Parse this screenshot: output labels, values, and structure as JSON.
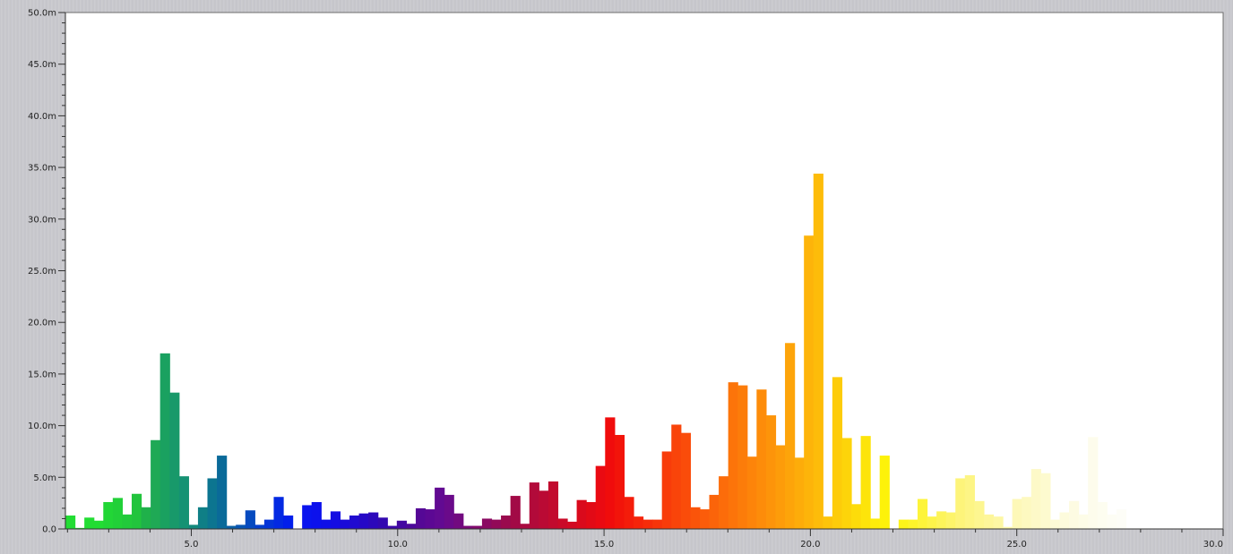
{
  "chart_data": {
    "type": "bar",
    "title": "",
    "xlabel": "",
    "ylabel": "",
    "xlim": [
      1.95,
      30.0
    ],
    "ylim": [
      0,
      50
    ],
    "grid": false,
    "bin_width": 0.2294,
    "x_ticks": [
      5.0,
      10.0,
      15.0,
      20.0,
      25.0,
      30.0
    ],
    "x_tick_labels": [
      "5.0",
      "10.0",
      "15.0",
      "20.0",
      "25.0",
      "30.0"
    ],
    "y_ticks": [
      0,
      5,
      10,
      15,
      20,
      25,
      30,
      35,
      40,
      45,
      50
    ],
    "y_tick_labels": [
      "0.0",
      "5.0m",
      "10.0m",
      "15.0m",
      "20.0m",
      "25.0m",
      "30.0m",
      "35.0m",
      "40.0m",
      "45.0m",
      "50.0m"
    ],
    "values": [
      1.3,
      0.1,
      1.1,
      0.8,
      2.6,
      3.0,
      1.4,
      3.4,
      2.1,
      8.6,
      17.0,
      13.2,
      5.1,
      0.4,
      2.1,
      4.9,
      7.1,
      0.3,
      0.4,
      1.8,
      0.4,
      0.9,
      3.1,
      1.3,
      0.0,
      2.3,
      2.6,
      0.9,
      1.7,
      0.9,
      1.3,
      1.5,
      1.6,
      1.1,
      0.3,
      0.8,
      0.5,
      2.0,
      1.9,
      4.0,
      3.3,
      1.5,
      0.3,
      0.3,
      1.0,
      0.9,
      1.3,
      3.2,
      0.5,
      4.5,
      3.7,
      4.6,
      1.0,
      0.7,
      2.8,
      2.6,
      6.1,
      10.8,
      9.1,
      3.1,
      1.2,
      0.9,
      0.9,
      7.5,
      10.1,
      9.3,
      2.1,
      1.9,
      3.3,
      5.1,
      14.2,
      13.9,
      7.0,
      13.5,
      11.0,
      8.1,
      18.0,
      6.9,
      28.4,
      34.4,
      1.2,
      14.7,
      8.8,
      2.4,
      9.0,
      1.0,
      7.1,
      0.0,
      0.9,
      0.9,
      2.9,
      1.2,
      1.7,
      1.6,
      4.9,
      5.2,
      2.7,
      1.4,
      1.2,
      0.2,
      2.9,
      3.1,
      5.8,
      5.4,
      0.9,
      1.6,
      2.7,
      1.4,
      8.9,
      2.6,
      1.4,
      1.9
    ],
    "colors": [
      "#22dd33",
      "#22dd33",
      "#22dd33",
      "#22dd33",
      "#22d636",
      "#22d038",
      "#22ca3b",
      "#22c43d",
      "#1fb14a",
      "#1fa955",
      "#1aa160",
      "#18996a",
      "#159273",
      "#13897c",
      "#0f7f86",
      "#0c7590",
      "#0a6a99",
      "#0a5fa5",
      "#0855b2",
      "#064abf",
      "#053fcc",
      "#0434d8",
      "#0329e2",
      "#021feb",
      "#0818f0",
      "#0a14ee",
      "#0c11ec",
      "#0f10e8",
      "#140de2",
      "#1a0ad9",
      "#200bd0",
      "#2608c6",
      "#2c08bb",
      "#3208b0",
      "#3a08a8",
      "#4308a1",
      "#4c089a",
      "#550896",
      "#5c0894",
      "#620a92",
      "#6a0a8a",
      "#720a80",
      "#7a0a76",
      "#820a6c",
      "#8a0a62",
      "#920a58",
      "#9a0a4e",
      "#a20a46",
      "#aa0a40",
      "#b20a3a",
      "#ba0a34",
      "#c20a2e",
      "#ca0a28",
      "#d20a22",
      "#da0a1c",
      "#e20a16",
      "#ea0a12",
      "#f00c0c",
      "#f2140a",
      "#f41c0a",
      "#f5240a",
      "#f62c0a",
      "#f7340a",
      "#f83c0a",
      "#f9440a",
      "#fa4c0a",
      "#fa540a",
      "#fb5c0a",
      "#fb640a",
      "#fc6c0a",
      "#fc740a",
      "#fc7c0a",
      "#fd840a",
      "#fd8c0a",
      "#fd940a",
      "#fd9c0a",
      "#fda40a",
      "#fdac0a",
      "#fdb40a",
      "#fdbc0a",
      "#fdc40a",
      "#fdcc0a",
      "#fdd40a",
      "#fddc0a",
      "#fde40a",
      "#fdec0a",
      "#fdf20a",
      "#fdf40a",
      "#fdf41a",
      "#fdf42a",
      "#fdf43a",
      "#fdf44a",
      "#fdf45a",
      "#fdf46a",
      "#fdf47a",
      "#fdf585",
      "#fdf690",
      "#fdf69a",
      "#fdf7a4",
      "#fdf8ae",
      "#fdf8b8",
      "#fdf9c0",
      "#fdf9c8",
      "#fdfacf",
      "#fdfad6",
      "#fdfbdc",
      "#fdfbe2",
      "#fdfce7",
      "#fdfcec",
      "#fdfdf0",
      "#fdfdf4",
      "#fdfdf7"
    ]
  }
}
